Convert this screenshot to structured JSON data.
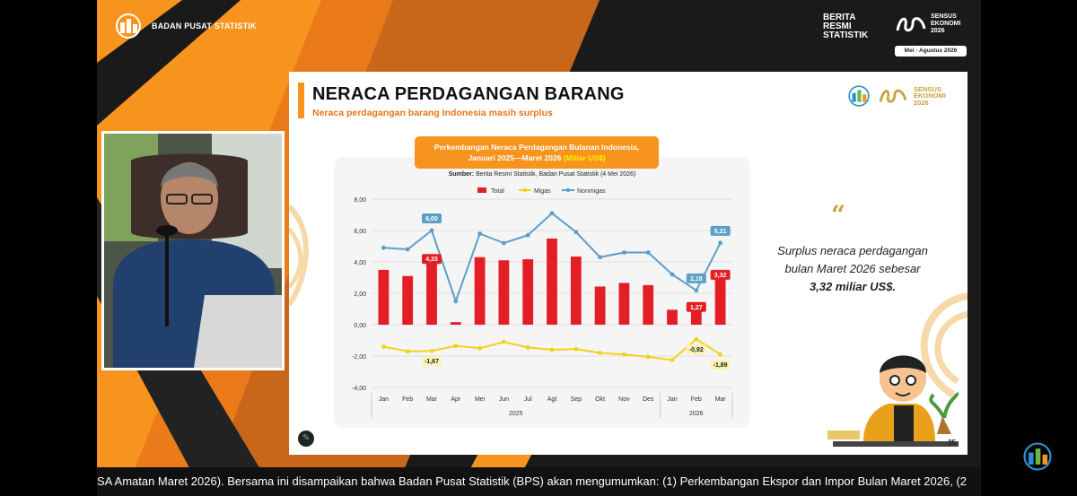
{
  "broadcast": {
    "org_label": "BADAN PUSAT STATISTIK",
    "brs_logo_lines": [
      "BERITA",
      "RESMI",
      "STATISTIK"
    ],
    "sensus_lines": [
      "SENSUS",
      "EKONOMI",
      "2026"
    ],
    "sensus_period": "Mei - Agustus 2026",
    "ticker": "SA Amatan Maret 2026). Bersama ini disampaikan bahwa Badan Pusat Statistik (BPS) akan mengumumkan: (1) Perkembangan Ekspor  dan Impor Bulan Maret 2026, (2"
  },
  "slide": {
    "title": "NERACA PERDAGANGAN BARANG",
    "subtitle": "Neraca perdagangan barang Indonesia masih surplus",
    "logo_lines": [
      "SENSUS",
      "EKONOMI",
      "2026"
    ],
    "chart_heading_line1": "Perkembangan Neraca Perdagangan Bulanan Indonesia,",
    "chart_heading_line2": "Januari 2025—Maret 2026",
    "chart_heading_unit": "(Miliar US$)",
    "chart_source_label": "Sumber:",
    "chart_source_text": "Berita Resmi Statistik, Badan Pusat Statistik (4 Mei 2026)",
    "quote_mark": "“",
    "quote_text": "Surplus neraca perdagangan bulan Maret 2026 sebesar",
    "quote_bold": "3,32 miliar US$.",
    "page_number": "35"
  },
  "colors": {
    "orange": "#f7941d",
    "total": "#e31e24",
    "migas": "#f2d21a",
    "nonmigas": "#5b9fc7",
    "gold": "#c9a23f"
  },
  "chart_data": {
    "type": "bar",
    "categories": [
      "Jan",
      "Feb",
      "Mar",
      "Apr",
      "Mei",
      "Jun",
      "Jul",
      "Agt",
      "Sep",
      "Okt",
      "Nov",
      "Des",
      "Jan",
      "Feb",
      "Mar"
    ],
    "year_groups": [
      {
        "label": "2025",
        "count": 12
      },
      {
        "label": "2026",
        "count": 3
      }
    ],
    "ylim": [
      -4,
      8
    ],
    "yticks": [
      "8,00",
      "6,00",
      "4,00",
      "2,00",
      "0,00",
      "-2,00",
      "-4,00"
    ],
    "legend": [
      "Total",
      "Migas",
      "Nonmigas"
    ],
    "legend_position": "top",
    "grid": true,
    "series": [
      {
        "name": "Total",
        "kind": "bar",
        "values": [
          3.49,
          3.1,
          4.33,
          0.16,
          4.3,
          4.1,
          4.17,
          5.49,
          4.34,
          2.43,
          2.66,
          2.52,
          0.95,
          1.27,
          3.32
        ]
      },
      {
        "name": "Migas",
        "kind": "line",
        "values": [
          -1.4,
          -1.7,
          -1.67,
          -1.35,
          -1.5,
          -1.1,
          -1.45,
          -1.6,
          -1.55,
          -1.8,
          -1.9,
          -2.05,
          -2.25,
          -0.92,
          -1.89
        ]
      },
      {
        "name": "Nonmigas",
        "kind": "line",
        "values": [
          4.9,
          4.8,
          6.0,
          1.5,
          5.8,
          5.2,
          5.7,
          7.1,
          5.9,
          4.3,
          4.6,
          4.6,
          3.2,
          2.18,
          5.21
        ]
      }
    ],
    "data_labels": [
      {
        "series": "Total",
        "index": 2,
        "text": "4,33"
      },
      {
        "series": "Total",
        "index": 13,
        "text": "1,27"
      },
      {
        "series": "Total",
        "index": 14,
        "text": "3,32"
      },
      {
        "series": "Nonmigas",
        "index": 2,
        "text": "6,00"
      },
      {
        "series": "Nonmigas",
        "index": 13,
        "text": "2,18"
      },
      {
        "series": "Nonmigas",
        "index": 14,
        "text": "5,21"
      },
      {
        "series": "Migas",
        "index": 2,
        "text": "-1,67"
      },
      {
        "series": "Migas",
        "index": 13,
        "text": "-0,92"
      },
      {
        "series": "Migas",
        "index": 14,
        "text": "-1,89"
      }
    ]
  }
}
